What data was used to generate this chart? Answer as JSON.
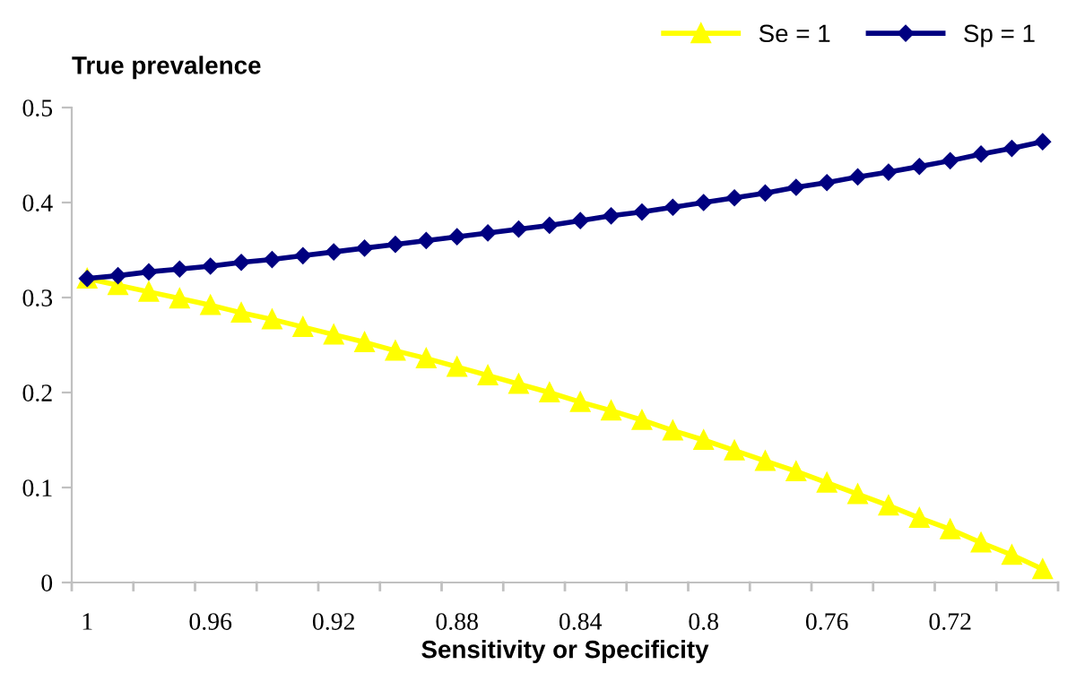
{
  "chart_data": {
    "type": "line",
    "ylabel": "True prevalence",
    "xlabel": "Sensitivity or Specificity",
    "categories": [
      "1",
      null,
      null,
      null,
      "0.96",
      null,
      null,
      null,
      "0.92",
      null,
      null,
      null,
      "0.88",
      null,
      null,
      null,
      "0.84",
      null,
      null,
      null,
      "0.8",
      null,
      null,
      null,
      "0.76",
      null,
      null,
      null,
      "0.72",
      null,
      null,
      null
    ],
    "series": [
      {
        "name": "Se = 1",
        "color": "#ffff00",
        "marker": "triangle",
        "values": [
          0.32,
          0.313,
          0.306,
          0.299,
          0.292,
          0.284,
          0.277,
          0.269,
          0.261,
          0.253,
          0.244,
          0.236,
          0.227,
          0.218,
          0.209,
          0.2,
          0.19,
          0.181,
          0.171,
          0.16,
          0.15,
          0.139,
          0.128,
          0.117,
          0.105,
          0.093,
          0.081,
          0.068,
          0.056,
          0.042,
          0.029,
          0.014
        ]
      },
      {
        "name": "Sp = 1",
        "color": "#000080",
        "marker": "diamond",
        "values": [
          0.32,
          0.323,
          0.327,
          0.33,
          0.333,
          0.337,
          0.34,
          0.344,
          0.348,
          0.352,
          0.356,
          0.36,
          0.364,
          0.368,
          0.372,
          0.376,
          0.381,
          0.386,
          0.39,
          0.395,
          0.4,
          0.405,
          0.41,
          0.416,
          0.421,
          0.427,
          0.432,
          0.438,
          0.444,
          0.451,
          0.457,
          0.464
        ]
      }
    ],
    "ylim": [
      0,
      0.5
    ],
    "yticks": [
      0,
      0.1,
      0.2,
      0.3,
      0.4,
      0.5
    ],
    "grid": false,
    "legend": "top right",
    "line_style": "solid"
  }
}
